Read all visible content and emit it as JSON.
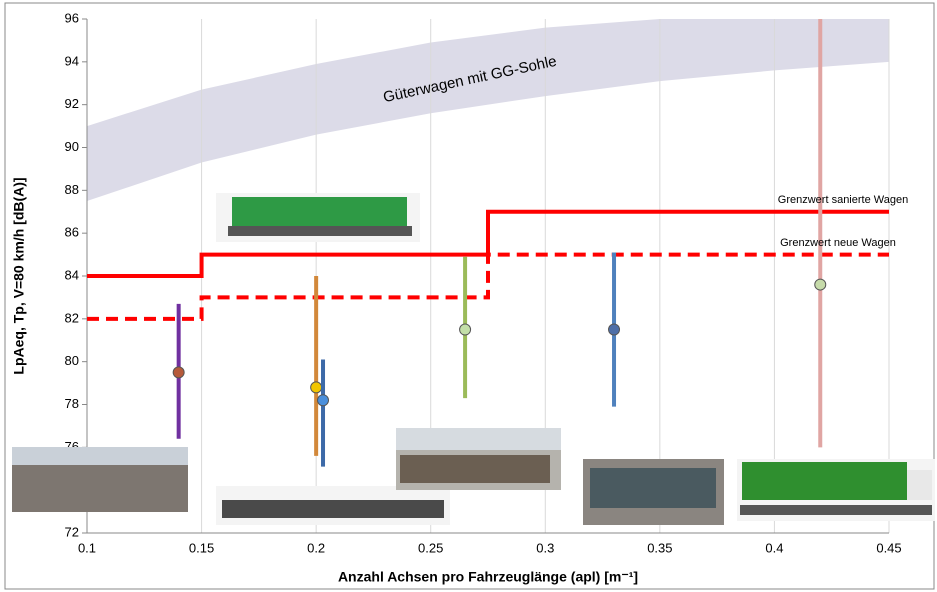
{
  "chart_data": {
    "type": "scatter",
    "x_label": "Anzahl Achsen pro Fahrzeuglänge (apl) [m⁻¹]",
    "y_label": "LpAeq, Tp, V=80 km/h [dB(A)]",
    "xlim": [
      0.1,
      0.45
    ],
    "xticks": [
      0.1,
      0.15,
      0.2,
      0.25,
      0.3,
      0.35,
      0.4,
      0.45
    ],
    "ylim": [
      72,
      96
    ],
    "yticks": [
      72,
      74,
      76,
      78,
      80,
      82,
      84,
      86,
      88,
      90,
      92,
      94,
      96
    ],
    "grid": true,
    "band": {
      "label": "Güterwagen mit GG-Sohle",
      "color": "#dcdbe8",
      "x": [
        0.1,
        0.15,
        0.2,
        0.25,
        0.3,
        0.35,
        0.4,
        0.45
      ],
      "lower": [
        87.5,
        89.3,
        90.6,
        91.6,
        92.4,
        93.1,
        93.6,
        94
      ],
      "upper": [
        91,
        92.7,
        93.9,
        94.9,
        95.6,
        96,
        96,
        96
      ]
    },
    "limits": [
      {
        "label": "Grenzwert sanierte Wagen",
        "color": "#ff0000",
        "dashed": false,
        "x": [
          0.1,
          0.15,
          0.15,
          0.275,
          0.275,
          0.45
        ],
        "values": [
          84,
          84,
          85,
          85,
          87,
          87
        ]
      },
      {
        "label": "Grenzwert neue Wagen",
        "color": "#ff0000",
        "dashed": true,
        "x": [
          0.1,
          0.15,
          0.15,
          0.275,
          0.275,
          0.45
        ],
        "values": [
          82,
          82,
          83,
          83,
          85,
          85
        ]
      }
    ],
    "series": [
      {
        "x": 0.14,
        "value": 79.5,
        "low": 76.4,
        "high": 82.7,
        "color": "#7030a0",
        "point_color": "#b65a3a"
      },
      {
        "x": 0.2,
        "value": 78.8,
        "low": 75.6,
        "high": 84,
        "color": "#d2883a",
        "point_color": "#f2c500"
      },
      {
        "x": 0.203,
        "value": 78.2,
        "low": 75.1,
        "high": 80.1,
        "color": "#3d6aa8",
        "point_color": "#4a8fdc"
      },
      {
        "x": 0.265,
        "value": 81.5,
        "low": 78.3,
        "high": 84.9,
        "color": "#9bbb59",
        "point_color": "#c3dfa8"
      },
      {
        "x": 0.33,
        "value": 81.5,
        "low": 77.9,
        "high": 85.1,
        "color": "#4f81bd",
        "point_color": "#4e6fa8"
      },
      {
        "x": 0.42,
        "value": 83.6,
        "low": 76,
        "high": 96,
        "color": "#e0a5a3",
        "point_color": "#c6dbaa"
      }
    ]
  }
}
